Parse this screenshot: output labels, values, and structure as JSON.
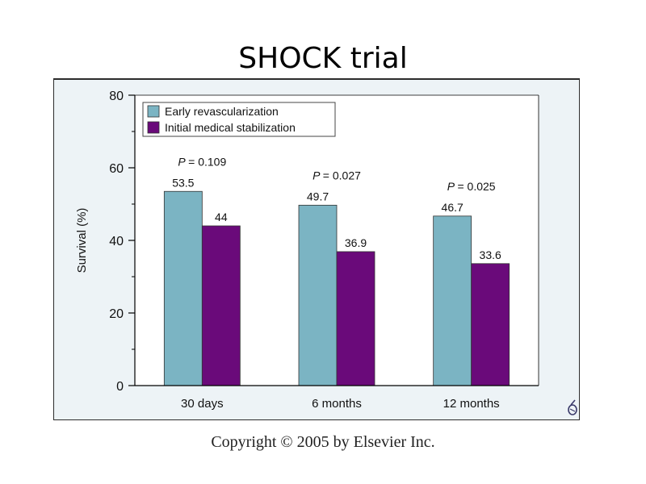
{
  "slide": {
    "title": "SHOCK trial",
    "copyright": "Copyright © 2005 by Elsevier Inc."
  },
  "colors": {
    "early": "#7bb4c3",
    "medical": "#6a0a7a",
    "frame_bg": "#edf3f6",
    "plot_bg": "#ffffff"
  },
  "chart_data": {
    "type": "bar",
    "title": "",
    "xlabel": "",
    "ylabel": "Survival (%)",
    "ylim": [
      0,
      80
    ],
    "yticks": [
      0,
      20,
      40,
      60,
      80
    ],
    "grid": false,
    "legend_position": "top-left",
    "categories": [
      "30 days",
      "6 months",
      "12 months"
    ],
    "series": [
      {
        "name": "Early revascularization",
        "values": [
          53.5,
          49.7,
          46.7
        ],
        "labels": [
          "53.5",
          "49.7",
          "46.7"
        ]
      },
      {
        "name": "Initial medical stabilization",
        "values": [
          44,
          36.9,
          33.6
        ],
        "labels": [
          "44",
          "36.9",
          "33.6"
        ]
      }
    ],
    "p_value_prefix": "P",
    "p_values": [
      "= 0.109",
      "= 0.027",
      "= 0.025"
    ]
  }
}
